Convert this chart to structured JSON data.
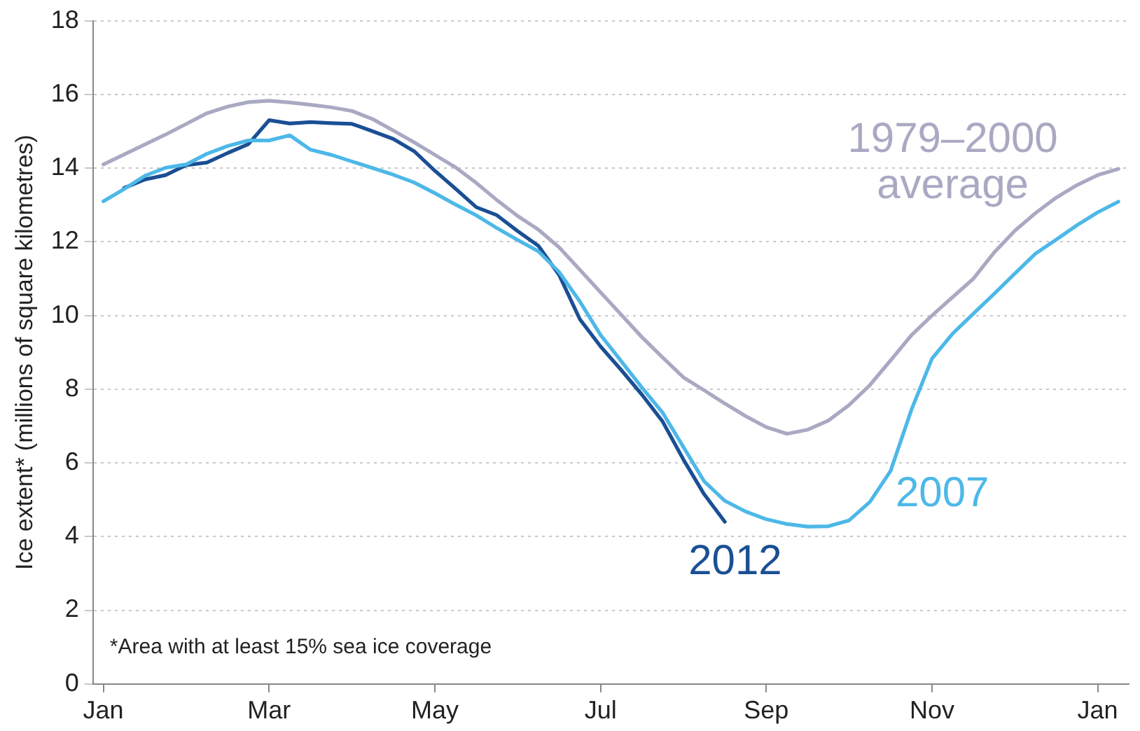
{
  "chart_data": {
    "type": "line",
    "ylabel": "Ice extent* (millions of square kilometres)",
    "categories": [
      "Jan",
      null,
      null,
      null,
      null,
      null,
      null,
      null,
      "Mar",
      null,
      null,
      null,
      null,
      null,
      null,
      null,
      "May",
      null,
      null,
      null,
      null,
      null,
      null,
      null,
      "Jul",
      null,
      null,
      null,
      null,
      null,
      null,
      null,
      "Sep",
      null,
      null,
      null,
      null,
      null,
      null,
      null,
      "Nov",
      null,
      null,
      null,
      null,
      null,
      null,
      null,
      "Jan",
      null
    ],
    "ylim": [
      0,
      18
    ],
    "yticks": [
      0,
      2,
      4,
      6,
      8,
      10,
      12,
      14,
      16,
      18
    ],
    "grid": "y",
    "legend": false,
    "marker": "none",
    "line_style": "solid",
    "annotations": [
      "*Area with at least 15% sea ice coverage"
    ],
    "series": [
      {
        "name": "1979–2000 average",
        "color": "#a9a9c3",
        "values": [
          14.1,
          14.37,
          14.64,
          14.91,
          15.2,
          15.49,
          15.67,
          15.79,
          15.83,
          15.78,
          15.72,
          15.65,
          15.55,
          15.33,
          15.02,
          14.7,
          14.36,
          14.02,
          13.6,
          13.13,
          12.7,
          12.33,
          11.85,
          11.24,
          10.63,
          10.02,
          9.41,
          8.86,
          8.32,
          7.97,
          7.61,
          7.27,
          6.97,
          6.79,
          6.9,
          7.15,
          7.57,
          8.11,
          8.78,
          9.46,
          10.0,
          10.5,
          11.0,
          11.71,
          12.3,
          12.78,
          13.2,
          13.54,
          13.81,
          13.98
        ]
      },
      {
        "name": "2007",
        "color": "#4db8e8",
        "values": [
          13.1,
          13.43,
          13.79,
          14.01,
          14.1,
          14.39,
          14.6,
          14.75,
          14.75,
          14.89,
          14.5,
          14.36,
          14.18,
          14.0,
          13.82,
          13.61,
          13.32,
          13.01,
          12.72,
          12.37,
          12.05,
          11.74,
          11.18,
          10.38,
          9.47,
          8.76,
          8.04,
          7.36,
          6.43,
          5.5,
          4.97,
          4.68,
          4.47,
          4.34,
          4.27,
          4.28,
          4.44,
          4.94,
          5.78,
          7.43,
          8.83,
          9.51,
          10.05,
          10.59,
          11.14,
          11.68,
          12.06,
          12.45,
          12.8,
          13.09
        ]
      },
      {
        "name": "2012",
        "color": "#1a4f94",
        "values": [
          null,
          13.46,
          13.69,
          13.81,
          14.08,
          14.15,
          14.41,
          14.65,
          15.3,
          15.21,
          15.25,
          15.22,
          15.2,
          15.0,
          14.79,
          14.46,
          13.93,
          13.44,
          12.94,
          12.72,
          12.29,
          11.89,
          11.1,
          9.9,
          9.16,
          8.52,
          7.85,
          7.12,
          6.09,
          5.15,
          4.4,
          null,
          null,
          null,
          null,
          null,
          null,
          null,
          null,
          null,
          null,
          null,
          null,
          null,
          null,
          null,
          null,
          null,
          null,
          null
        ]
      }
    ]
  }
}
